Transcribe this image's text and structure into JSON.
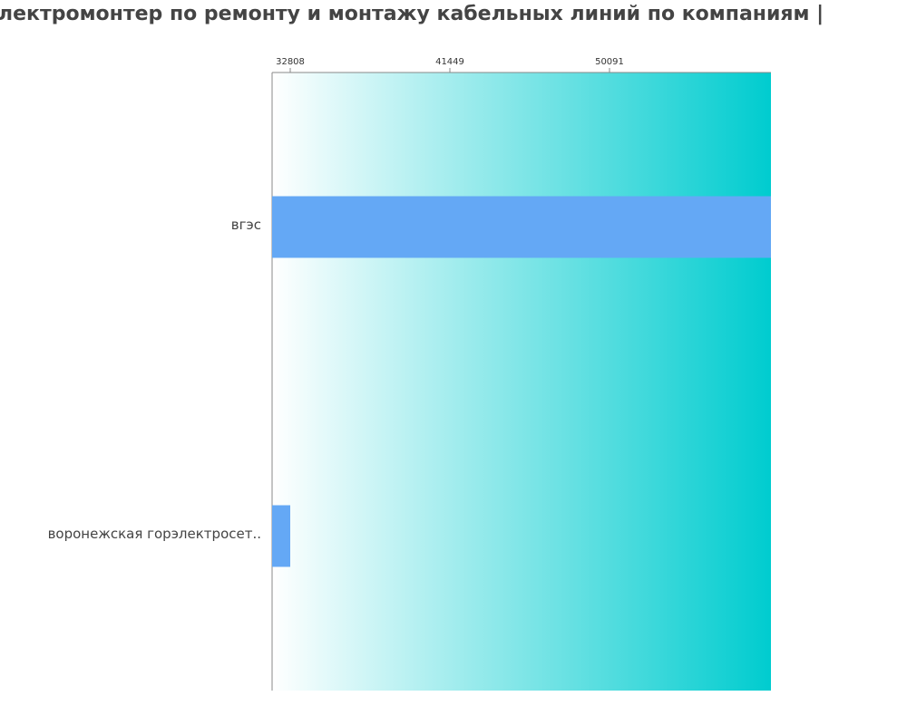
{
  "chart_data": {
    "type": "hbar",
    "title": "лектромонтер по ремонту и монтажу кабельных линий по компаниям  |",
    "categories": [
      "вгэс",
      "воронежская горэлектросет.."
    ],
    "values": [
      58831,
      32808
    ],
    "color": "#64a8f5",
    "xlim": [
      31826,
      58831
    ],
    "xticks": [
      32808,
      41449,
      50091
    ]
  }
}
